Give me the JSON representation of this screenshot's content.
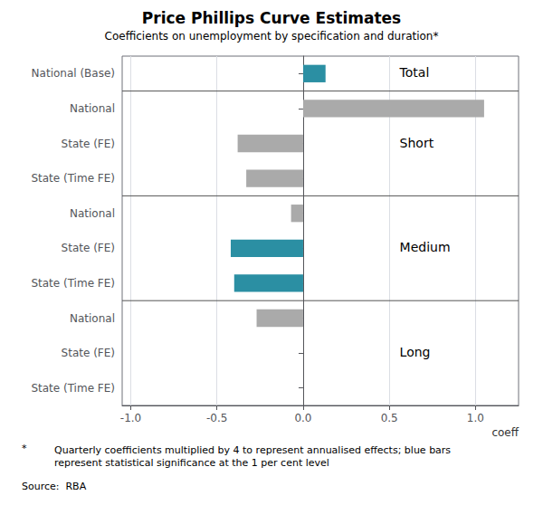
{
  "chart_data": {
    "type": "bar",
    "orientation": "horizontal",
    "title": "Price Phillips Curve Estimates",
    "subtitle": "Coefficients on unemployment by specification and duration*",
    "xlabel": "coeff",
    "categories": [
      "National (Base)",
      "National",
      "State (FE)",
      "State (Time FE)",
      "National",
      "State (FE)",
      "State (Time FE)",
      "National",
      "State (FE)",
      "State (Time FE)"
    ],
    "groups": [
      "Total",
      "Short",
      "Short",
      "Short",
      "Medium",
      "Medium",
      "Medium",
      "Long",
      "Long",
      "Long"
    ],
    "values": [
      0.13,
      1.05,
      -0.38,
      -0.33,
      -0.07,
      -0.42,
      -0.4,
      -0.27,
      0.0,
      0.0
    ],
    "colors": [
      "#2b8fa3",
      "#aaaaaa",
      "#aaaaaa",
      "#aaaaaa",
      "#aaaaaa",
      "#2b8fa3",
      "#2b8fa3",
      "#aaaaaa",
      "#aaaaaa",
      "#aaaaaa"
    ],
    "xlim": [
      -1.05,
      1.25
    ],
    "xticks": [
      {
        "value": -1.0,
        "label": "-1.0"
      },
      -0.5,
      {
        "value": 0.0,
        "label": "0.0"
      },
      0.5,
      {
        "value": 1.0,
        "label": "1.0"
      }
    ],
    "grid": true,
    "footnote_marker": "*",
    "footnote": "Quarterly coefficients multiplied by 4 to represent annualised effects; blue bars\nrepresent statistical significance at the 1 per cent level",
    "source": "Source:  RBA"
  }
}
